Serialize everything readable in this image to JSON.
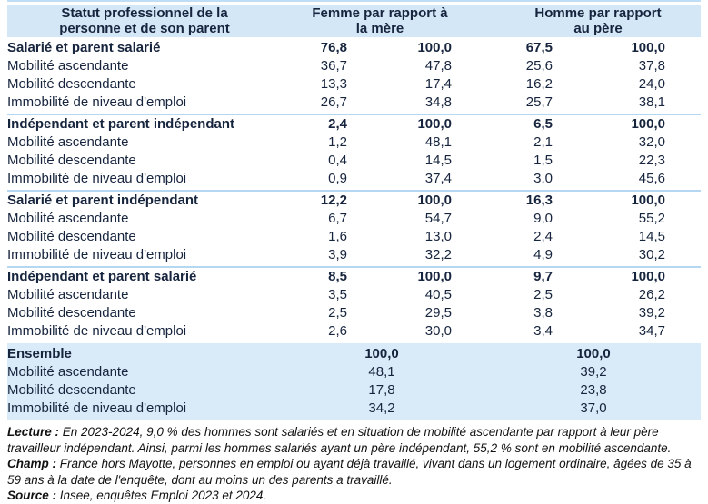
{
  "colors": {
    "header_bg": "#d3e7f7",
    "ensemble_bg": "#d9ebf9",
    "separator": "#b5d8f2",
    "top_rule": "#bfdef5",
    "text": "#16243d"
  },
  "header": {
    "label_col": "Statut professionnel de la personne et de son parent",
    "group1": "Femme par rapport à la mère",
    "group2": "Homme par rapport au père"
  },
  "sections": [
    {
      "title": "Salarié et parent salarié",
      "title_values": [
        "76,8",
        "100,0",
        "67,5",
        "100,0"
      ],
      "rows": [
        {
          "label": "Mobilité ascendante",
          "values": [
            "36,7",
            "47,8",
            "25,6",
            "37,8"
          ]
        },
        {
          "label": "Mobilité descendante",
          "values": [
            "13,3",
            "17,4",
            "16,2",
            "24,0"
          ]
        },
        {
          "label": "Immobilité de niveau d'emploi",
          "values": [
            "26,7",
            "34,8",
            "25,7",
            "38,1"
          ]
        }
      ]
    },
    {
      "title": "Indépendant et parent indépendant",
      "title_values": [
        "2,4",
        "100,0",
        "6,5",
        "100,0"
      ],
      "rows": [
        {
          "label": "Mobilité ascendante",
          "values": [
            "1,2",
            "48,1",
            "2,1",
            "32,0"
          ]
        },
        {
          "label": "Mobilité descendante",
          "values": [
            "0,4",
            "14,5",
            "1,5",
            "22,3"
          ]
        },
        {
          "label": "Immobilité de niveau d'emploi",
          "values": [
            "0,9",
            "37,4",
            "3,0",
            "45,6"
          ]
        }
      ]
    },
    {
      "title": "Salarié et parent indépendant",
      "title_values": [
        "12,2",
        "100,0",
        "16,3",
        "100,0"
      ],
      "rows": [
        {
          "label": "Mobilité ascendante",
          "values": [
            "6,7",
            "54,7",
            "9,0",
            "55,2"
          ]
        },
        {
          "label": "Mobilité descendante",
          "values": [
            "1,6",
            "13,0",
            "2,4",
            "14,5"
          ]
        },
        {
          "label": "Immobilité de niveau d'emploi",
          "values": [
            "3,9",
            "32,2",
            "4,9",
            "30,2"
          ]
        }
      ]
    },
    {
      "title": "Indépendant et parent salarié",
      "title_values": [
        "8,5",
        "100,0",
        "9,7",
        "100,0"
      ],
      "rows": [
        {
          "label": "Mobilité ascendante",
          "values": [
            "3,5",
            "40,5",
            "2,5",
            "26,2"
          ]
        },
        {
          "label": "Mobilité descendante",
          "values": [
            "2,5",
            "29,5",
            "3,8",
            "39,2"
          ]
        },
        {
          "label": "Immobilité de niveau d'emploi",
          "values": [
            "2,6",
            "30,0",
            "3,4",
            "34,7"
          ]
        }
      ]
    }
  ],
  "ensemble": {
    "title": "Ensemble",
    "title_values": [
      "100,0",
      "100,0"
    ],
    "rows": [
      {
        "label": "Mobilité ascendante",
        "values": [
          "48,1",
          "39,2"
        ]
      },
      {
        "label": "Mobilité descendante",
        "values": [
          "17,8",
          "23,8"
        ]
      },
      {
        "label": "Immobilité de niveau d'emploi",
        "values": [
          "34,2",
          "37,0"
        ]
      }
    ]
  },
  "notes": [
    {
      "label": "Lecture :",
      "text": "En 2023-2024, 9,0 % des hommes sont salariés et en situation de mobilité ascendante par rapport à leur père travailleur indépendant. Ainsi, parmi les hommes salariés ayant un père indépendant, 55,2 % sont en mobilité ascendante."
    },
    {
      "label": "Champ :",
      "text": "France hors Mayotte, personnes en emploi ou ayant déjà travaillé, vivant dans un logement ordinaire, âgées de 35 à 59 ans à la date de l'enquête, dont au moins un des parents a travaillé."
    },
    {
      "label": "Source :",
      "text": "Insee, enquêtes Emploi 2023 et 2024."
    }
  ]
}
